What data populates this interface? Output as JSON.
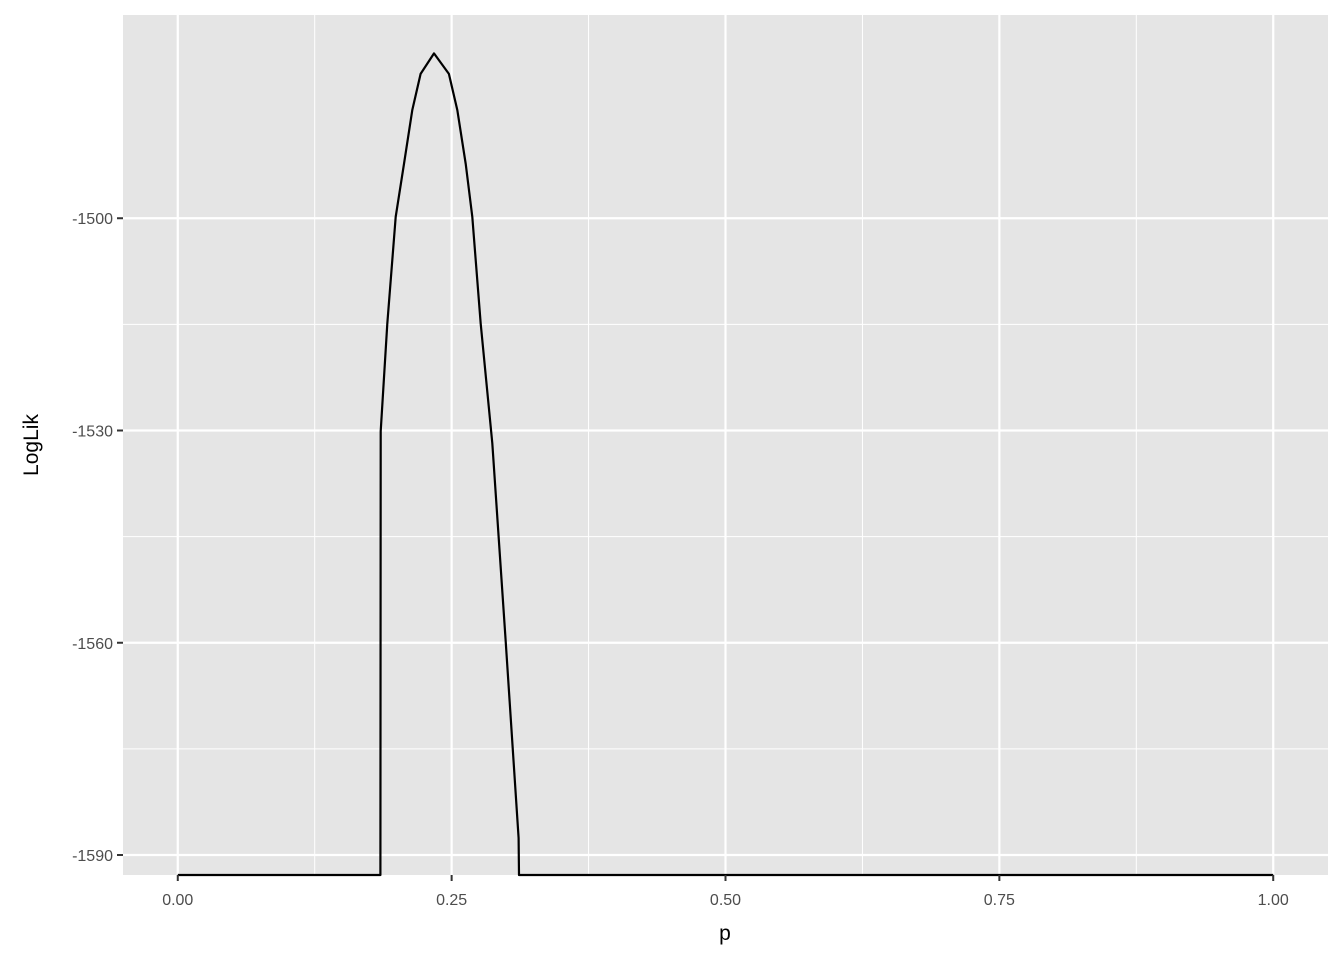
{
  "chart_data": {
    "type": "line",
    "title": "",
    "xlabel": "p",
    "ylabel": "LogLik",
    "xlim": [
      0,
      1
    ],
    "ylim": [
      -1587.3,
      -1476.8
    ],
    "x_ticks": [
      0,
      0.25,
      0.5,
      0.75,
      1
    ],
    "x_tick_labels": [
      "0.00",
      "0.25",
      "0.50",
      "0.75",
      "1.00"
    ],
    "y_ticks": [
      -1500,
      -1530,
      -1560,
      -1590
    ],
    "y_tick_labels": [
      "-1500",
      "-1530",
      "-1560",
      "-1590"
    ],
    "grid": true,
    "note_clipping": "",
    "series": [
      {
        "color": "#000000",
        "x": [
          0,
          0.185,
          0.1852,
          0.1913,
          0.1989,
          0.2065,
          0.2141,
          0.2217,
          0.2339,
          0.2475,
          0.2552,
          0.2628,
          0.2689,
          0.2765,
          0.2871,
          0.2993,
          0.3111,
          0.3115,
          1
        ],
        "y": [
          null,
          null,
          -1530.1,
          -1514.9,
          -1499.8,
          -1492.3,
          -1484.7,
          -1479.6,
          -1476.7,
          -1479.6,
          -1484.7,
          -1492.3,
          -1499.8,
          -1514.9,
          -1531.8,
          -1559.6,
          -1587.6,
          null,
          null
        ]
      }
    ],
    "panel_background": "#e5e5e5",
    "grid_color": "#ffffff"
  }
}
